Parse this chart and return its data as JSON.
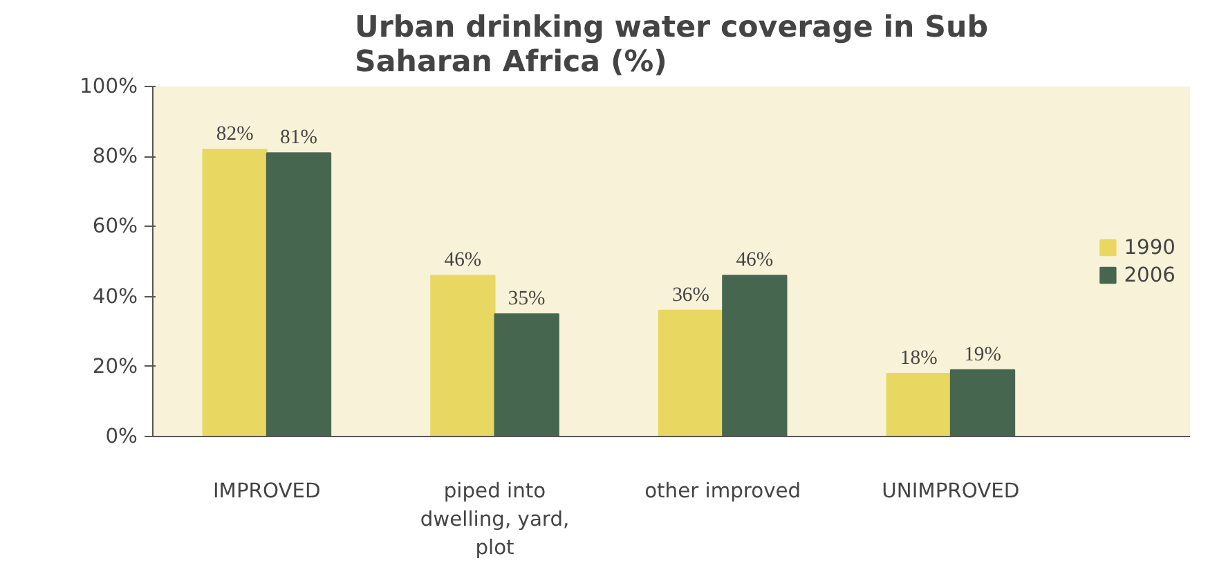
{
  "chart_data": {
    "type": "bar",
    "title": "Urban drinking water coverage in Sub Saharan Africa (%)",
    "categories": [
      "IMPROVED",
      "piped into dwelling, yard, plot",
      "other improved",
      "UNIMPROVED"
    ],
    "series": [
      {
        "name": "1990",
        "color": "#e8d862",
        "values": [
          82,
          46,
          36,
          18
        ],
        "value_labels": [
          "82%",
          "46%",
          "36%",
          "18%"
        ]
      },
      {
        "name": "2006",
        "color": "#476650",
        "values": [
          81,
          35,
          46,
          19
        ],
        "value_labels": [
          "81%",
          "35%",
          "46%",
          "19%"
        ]
      }
    ],
    "ylim": [
      0,
      100
    ],
    "yticks": [
      {
        "value": 0,
        "label": "0%"
      },
      {
        "value": 20,
        "label": "20%"
      },
      {
        "value": 40,
        "label": "40%"
      },
      {
        "value": 60,
        "label": "60%"
      },
      {
        "value": 80,
        "label": "80%"
      },
      {
        "value": 100,
        "label": "100%"
      }
    ],
    "grid": false,
    "legend": "right"
  }
}
